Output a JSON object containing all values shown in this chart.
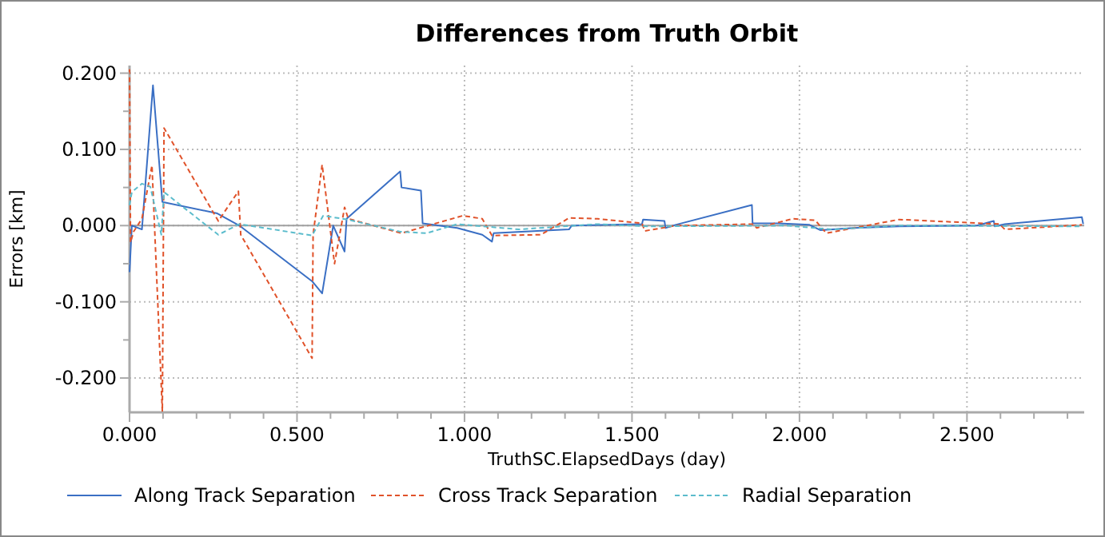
{
  "chart_data": {
    "type": "line",
    "title": "Differences from Truth Orbit",
    "xlabel": "TruthSC.ElapsedDays (day)",
    "ylabel": "Errors [km]",
    "xlim": [
      0,
      2.85
    ],
    "ylim": [
      -0.245,
      0.21
    ],
    "xticks": [
      {
        "value": 0,
        "label": "0.000"
      },
      {
        "value": 0.1,
        "label": null
      },
      {
        "value": 0.2,
        "label": null
      },
      {
        "value": 0.3,
        "label": null
      },
      {
        "value": 0.4,
        "label": null
      },
      {
        "value": 0.5,
        "label": "0.500"
      },
      {
        "value": 0.6,
        "label": null
      },
      {
        "value": 0.7,
        "label": null
      },
      {
        "value": 0.8,
        "label": null
      },
      {
        "value": 0.9,
        "label": null
      },
      {
        "value": 1,
        "label": "1.000"
      },
      {
        "value": 1.1,
        "label": null
      },
      {
        "value": 1.2,
        "label": null
      },
      {
        "value": 1.3,
        "label": null
      },
      {
        "value": 1.4,
        "label": null
      },
      {
        "value": 1.5,
        "label": "1.500"
      },
      {
        "value": 1.6,
        "label": null
      },
      {
        "value": 1.7,
        "label": null
      },
      {
        "value": 1.8,
        "label": null
      },
      {
        "value": 1.9,
        "label": null
      },
      {
        "value": 2,
        "label": "2.000"
      },
      {
        "value": 2.1,
        "label": null
      },
      {
        "value": 2.2,
        "label": null
      },
      {
        "value": 2.3,
        "label": null
      },
      {
        "value": 2.4,
        "label": null
      },
      {
        "value": 2.5,
        "label": "2.500"
      },
      {
        "value": 2.6,
        "label": null
      },
      {
        "value": 2.7,
        "label": null
      },
      {
        "value": 2.8,
        "label": null
      }
    ],
    "yticks": [
      {
        "value": -0.2,
        "label": "-0.200"
      },
      {
        "value": -0.15,
        "label": null
      },
      {
        "value": -0.1,
        "label": "-0.100"
      },
      {
        "value": -0.05,
        "label": null
      },
      {
        "value": 0,
        "label": "0.000"
      },
      {
        "value": 0.05,
        "label": null
      },
      {
        "value": 0.1,
        "label": "0.100"
      },
      {
        "value": 0.15,
        "label": null
      },
      {
        "value": 0.2,
        "label": "0.200"
      }
    ],
    "grid": true,
    "legend": "bottom",
    "ref_lines": [
      {
        "axis": "y",
        "value": 0,
        "color": "#a0a0a0"
      }
    ],
    "series": [
      {
        "name": "Along Track Separation",
        "color": "#3a6fc4",
        "line_style": "solid",
        "x": [
          0,
          0.007,
          0.037,
          0.07,
          0.098,
          0.262,
          0.328,
          0.545,
          0.575,
          0.608,
          0.642,
          0.648,
          0.808,
          0.812,
          0.87,
          0.875,
          0.978,
          1.053,
          1.082,
          1.087,
          1.312,
          1.32,
          1.53,
          1.533,
          1.597,
          1.6,
          1.63,
          1.858,
          1.86,
          1.938,
          2.03,
          2.063,
          2.163,
          2.297,
          2.53,
          2.58,
          2.583,
          2.613,
          2.843,
          2.847
        ],
        "values": [
          -0.061,
          0,
          -0.005,
          0.184,
          0.031,
          0.016,
          0,
          -0.073,
          -0.089,
          0,
          -0.034,
          0.009,
          0.071,
          0.05,
          0.046,
          0.003,
          -0.003,
          -0.012,
          -0.021,
          -0.01,
          -0.005,
          0,
          0.002,
          0.008,
          0.006,
          -0.003,
          0.001,
          0.027,
          0.003,
          0.003,
          0.001,
          -0.006,
          -0.003,
          -0.001,
          0,
          0.006,
          -0.001,
          0.002,
          0.011,
          0.002
        ]
      },
      {
        "name": "Cross Track Separation",
        "color": "#e0522a",
        "line_style": "dashed",
        "x": [
          0,
          0.003,
          0.012,
          0.037,
          0.067,
          0.098,
          0.103,
          0.265,
          0.325,
          0.332,
          0.545,
          0.548,
          0.575,
          0.612,
          0.642,
          0.653,
          0.812,
          0.995,
          1.053,
          1.082,
          1.228,
          1.312,
          1.397,
          1.53,
          1.538,
          1.63,
          1.863,
          1.872,
          1.98,
          2.047,
          2.08,
          2.297,
          2.597,
          2.613,
          2.843
        ],
        "values": [
          0.205,
          -0.022,
          -0.008,
          0.009,
          0.079,
          -0.244,
          0.128,
          0.006,
          0.045,
          -0.012,
          -0.174,
          -0.012,
          0.08,
          -0.05,
          0.024,
          0.009,
          -0.01,
          0.013,
          0.009,
          -0.013,
          -0.012,
          0.01,
          0.009,
          0.003,
          -0.007,
          0,
          0.002,
          -0.003,
          0.009,
          0.007,
          -0.01,
          0.008,
          0.002,
          -0.005,
          0.001
        ]
      },
      {
        "name": "Radial Separation",
        "color": "#5bbccc",
        "line_style": "dashed",
        "x": [
          0,
          0.007,
          0.037,
          0.062,
          0.095,
          0.103,
          0.265,
          0.328,
          0.545,
          0.578,
          0.65,
          0.808,
          0.887,
          0.978,
          1.162,
          1.397,
          1.547,
          1.963,
          2.097,
          2.297,
          2.843
        ],
        "values": [
          0.027,
          0.044,
          0.055,
          0.051,
          -0.012,
          0.044,
          -0.012,
          0.002,
          -0.013,
          0.013,
          0.008,
          -0.008,
          -0.01,
          0.002,
          -0.005,
          0.002,
          -0.001,
          0,
          -0.005,
          0,
          -0.001
        ]
      }
    ]
  }
}
